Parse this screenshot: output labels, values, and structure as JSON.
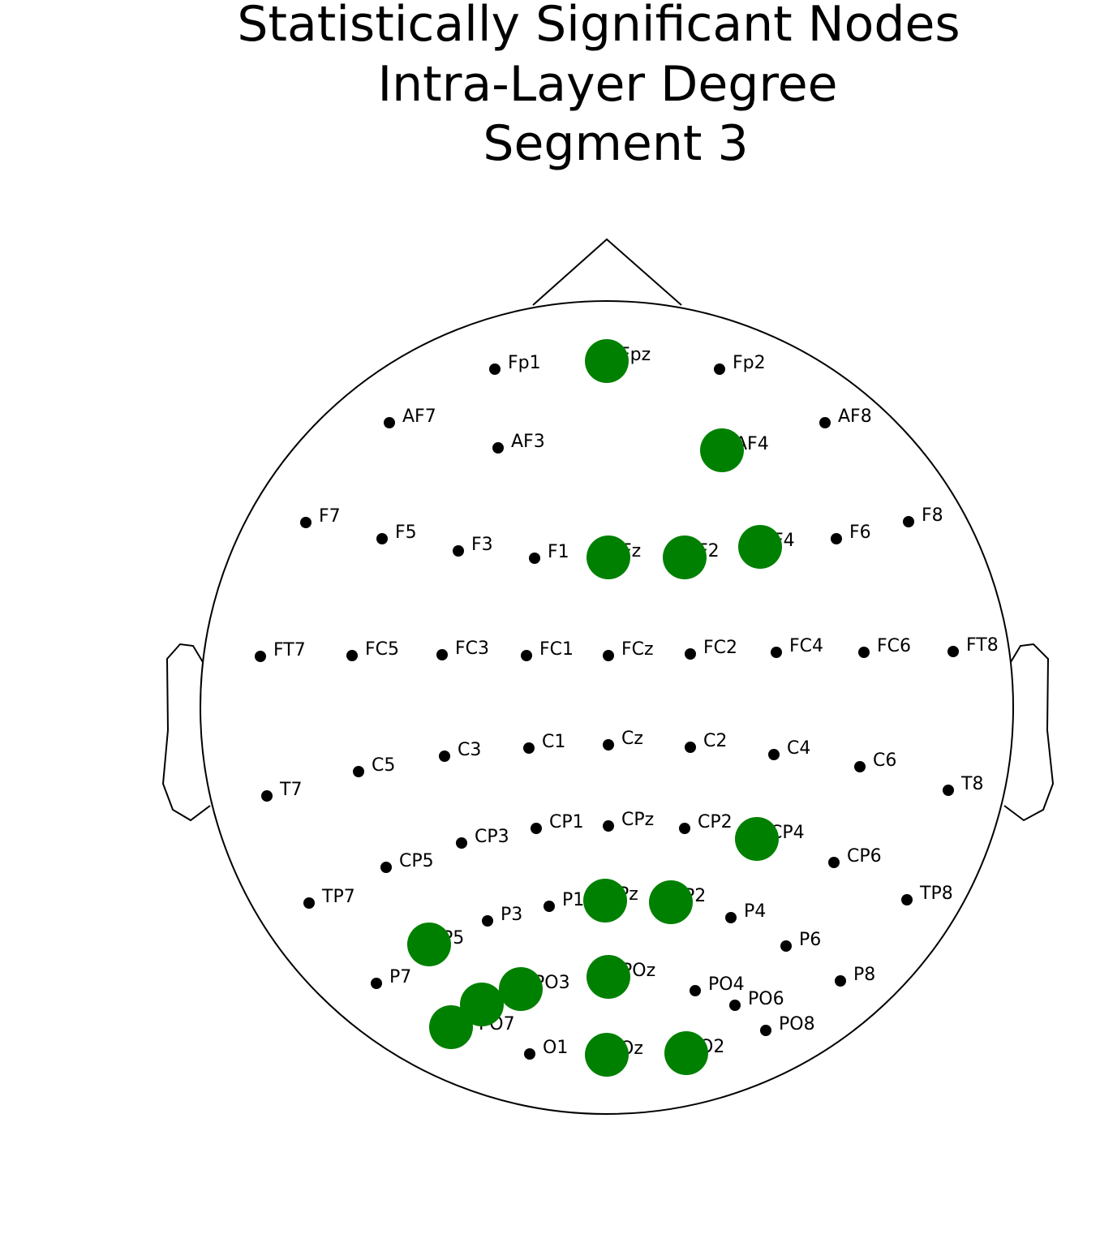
{
  "header": {
    "title_lines": [
      "Statistically Significant Nodes",
      "Intra-Layer Degree",
      "Segment 3"
    ]
  },
  "highlight_color": "#008000",
  "nodes": [
    {
      "label": "Fp1",
      "significant": false
    },
    {
      "label": "Fpz",
      "significant": true
    },
    {
      "label": "Fp2",
      "significant": false
    },
    {
      "label": "AF7",
      "significant": false
    },
    {
      "label": "AF3",
      "significant": false
    },
    {
      "label": "AF4",
      "significant": true
    },
    {
      "label": "AF8",
      "significant": false
    },
    {
      "label": "F7",
      "significant": false
    },
    {
      "label": "F5",
      "significant": false
    },
    {
      "label": "F3",
      "significant": false
    },
    {
      "label": "F1",
      "significant": false
    },
    {
      "label": "Fz",
      "significant": true
    },
    {
      "label": "F2",
      "significant": true
    },
    {
      "label": "F4",
      "significant": true
    },
    {
      "label": "F6",
      "significant": false
    },
    {
      "label": "F8",
      "significant": false
    },
    {
      "label": "FT7",
      "significant": false
    },
    {
      "label": "FC5",
      "significant": false
    },
    {
      "label": "FC3",
      "significant": false
    },
    {
      "label": "FC1",
      "significant": false
    },
    {
      "label": "FCz",
      "significant": false
    },
    {
      "label": "FC2",
      "significant": false
    },
    {
      "label": "FC4",
      "significant": false
    },
    {
      "label": "FC6",
      "significant": false
    },
    {
      "label": "FT8",
      "significant": false
    },
    {
      "label": "T7",
      "significant": false
    },
    {
      "label": "C5",
      "significant": false
    },
    {
      "label": "C3",
      "significant": false
    },
    {
      "label": "C1",
      "significant": false
    },
    {
      "label": "Cz",
      "significant": false
    },
    {
      "label": "C2",
      "significant": false
    },
    {
      "label": "C4",
      "significant": false
    },
    {
      "label": "C6",
      "significant": false
    },
    {
      "label": "T8",
      "significant": false
    },
    {
      "label": "TP7",
      "significant": false
    },
    {
      "label": "CP5",
      "significant": false
    },
    {
      "label": "CP3",
      "significant": false
    },
    {
      "label": "CP1",
      "significant": false
    },
    {
      "label": "CPz",
      "significant": false
    },
    {
      "label": "CP2",
      "significant": false
    },
    {
      "label": "CP4",
      "significant": true
    },
    {
      "label": "CP6",
      "significant": false
    },
    {
      "label": "TP8",
      "significant": false
    },
    {
      "label": "P7",
      "significant": false
    },
    {
      "label": "P5",
      "significant": true
    },
    {
      "label": "P3",
      "significant": false
    },
    {
      "label": "P1",
      "significant": false
    },
    {
      "label": "Pz",
      "significant": true
    },
    {
      "label": "P2",
      "significant": true
    },
    {
      "label": "P4",
      "significant": false
    },
    {
      "label": "P6",
      "significant": false
    },
    {
      "label": "P8",
      "significant": false
    },
    {
      "label": "PO7",
      "significant": true
    },
    {
      "label": "PO5",
      "significant": true
    },
    {
      "label": "PO3",
      "significant": true
    },
    {
      "label": "POz",
      "significant": true
    },
    {
      "label": "PO4",
      "significant": false
    },
    {
      "label": "PO6",
      "significant": false
    },
    {
      "label": "PO8",
      "significant": false
    },
    {
      "label": "O1",
      "significant": false
    },
    {
      "label": "Oz",
      "significant": true
    },
    {
      "label": "O2",
      "significant": true
    }
  ]
}
